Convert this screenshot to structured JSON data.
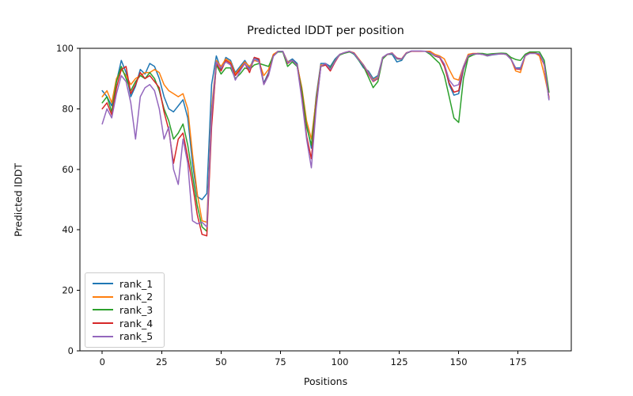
{
  "chart_data": {
    "type": "line",
    "title": "Predicted lDDT per position",
    "xlabel": "Positions",
    "ylabel": "Predicted lDDT",
    "grid": false,
    "legend_position": "lower left",
    "xlim": [
      -9.4,
      197.4
    ],
    "ylim": [
      0,
      100
    ],
    "x_ticks": [
      0,
      25,
      50,
      75,
      100,
      125,
      150,
      175
    ],
    "y_ticks": [
      0,
      20,
      40,
      60,
      80,
      100
    ],
    "x": [
      0,
      2,
      4,
      6,
      8,
      10,
      12,
      14,
      16,
      18,
      20,
      22,
      24,
      26,
      28,
      30,
      32,
      34,
      36,
      38,
      40,
      42,
      44,
      46,
      48,
      50,
      52,
      54,
      56,
      58,
      60,
      62,
      64,
      66,
      68,
      70,
      72,
      74,
      76,
      78,
      80,
      82,
      84,
      86,
      88,
      90,
      92,
      94,
      96,
      98,
      100,
      102,
      104,
      106,
      108,
      110,
      112,
      114,
      116,
      118,
      120,
      122,
      124,
      126,
      128,
      130,
      132,
      134,
      136,
      138,
      140,
      142,
      144,
      146,
      148,
      150,
      152,
      154,
      156,
      158,
      160,
      162,
      164,
      166,
      168,
      170,
      172,
      174,
      176,
      178,
      180,
      182,
      184,
      186,
      188
    ],
    "series": [
      {
        "name": "rank_1",
        "color": "#1f77b4",
        "values": [
          86,
          84,
          81,
          89,
          96,
          92,
          84,
          87.5,
          93,
          91.5,
          95,
          94,
          90,
          84,
          80,
          79,
          81,
          83,
          77,
          62,
          51,
          50,
          52,
          88,
          97.5,
          93,
          97,
          96,
          92,
          94,
          96,
          93.5,
          97,
          96,
          88.5,
          92,
          97.5,
          99,
          99,
          95.5,
          96.5,
          95,
          86,
          75,
          67,
          84,
          95,
          95,
          94,
          96.5,
          98,
          98.5,
          99,
          98,
          96,
          93.5,
          92.5,
          90,
          91,
          97,
          98,
          98,
          95.5,
          96,
          98.5,
          99,
          99,
          99,
          99,
          98.5,
          97.5,
          97,
          94.5,
          88,
          84.5,
          85,
          93,
          97.5,
          98,
          98.2,
          98,
          97.5,
          97.8,
          98,
          98.2,
          98,
          96.5,
          93.5,
          93.5,
          97.5,
          98.5,
          98.5,
          98,
          95,
          83
        ]
      },
      {
        "name": "rank_2",
        "color": "#ff7f0e",
        "values": [
          84,
          86,
          82,
          90,
          93,
          91,
          88,
          90,
          91,
          92,
          92,
          93,
          92,
          88,
          86,
          85,
          84,
          85,
          80,
          65,
          52,
          43,
          42.5,
          80,
          96,
          94,
          96.5,
          95.5,
          91.5,
          93.5,
          95.5,
          94,
          96,
          95.5,
          91,
          93,
          98,
          99,
          99,
          95.5,
          96,
          94.5,
          87,
          76,
          70,
          83,
          94.5,
          94.5,
          93.5,
          96,
          98,
          98.5,
          99,
          98.5,
          96.5,
          94.5,
          92,
          89.5,
          90.5,
          97,
          98,
          98.5,
          96.5,
          96.5,
          98.5,
          99,
          99,
          99,
          99,
          99,
          98,
          97.5,
          96.5,
          93,
          90,
          89.5,
          94,
          98,
          98.3,
          98.3,
          98.2,
          97.8,
          98,
          98.2,
          98.3,
          98,
          96.5,
          92.5,
          92,
          97.5,
          98.5,
          98.5,
          97.5,
          91.5,
          84
        ]
      },
      {
        "name": "rank_3",
        "color": "#2ca02c",
        "values": [
          82,
          84,
          79,
          89,
          94,
          90,
          86,
          89,
          91,
          90,
          92,
          90,
          86,
          80,
          76,
          70,
          72,
          75,
          68,
          58,
          48,
          41,
          39.5,
          76,
          94.5,
          91.5,
          93.5,
          93.5,
          90,
          91.5,
          93.5,
          93,
          94.5,
          95,
          94.5,
          94,
          97.5,
          98.8,
          98.8,
          94,
          95.5,
          94,
          86,
          74,
          68,
          82,
          94,
          94.5,
          93.5,
          96,
          97.8,
          98.4,
          98.8,
          98.2,
          96,
          94,
          90.5,
          87,
          89,
          96.5,
          98,
          98.3,
          96.5,
          96.3,
          98.3,
          99,
          99,
          99,
          99,
          98,
          96.5,
          95,
          91,
          84,
          77,
          75.5,
          90,
          97,
          97.8,
          98.3,
          98.3,
          98,
          98.2,
          98.3,
          98.4,
          98.3,
          97,
          96.3,
          96,
          98,
          98.8,
          98.8,
          98.8,
          96,
          85.5
        ]
      },
      {
        "name": "rank_4",
        "color": "#d62728",
        "values": [
          80,
          82,
          78,
          87,
          93,
          94,
          85,
          88,
          92,
          90,
          91,
          89,
          87,
          79,
          73,
          62,
          70,
          72,
          64,
          55,
          45,
          38.5,
          38,
          74,
          95,
          92.5,
          96,
          95,
          91,
          93,
          95,
          92,
          97,
          96.5,
          88,
          91.5,
          97.5,
          99,
          99,
          95,
          96,
          94.5,
          84,
          71,
          63.5,
          81,
          94,
          94.5,
          92.5,
          95.5,
          98,
          98.6,
          99,
          98.4,
          96.3,
          94.3,
          91.5,
          89,
          90,
          97,
          98,
          98.4,
          96.8,
          96.5,
          98.5,
          99,
          99,
          99,
          99,
          98.6,
          97.5,
          97,
          94,
          88.5,
          85.5,
          86,
          93.5,
          97.5,
          98.2,
          98.2,
          98,
          97.6,
          97.9,
          98.1,
          98.2,
          98,
          96.5,
          93.2,
          93,
          97.6,
          98.4,
          98.4,
          98,
          94.5,
          83.5
        ]
      },
      {
        "name": "rank_5",
        "color": "#9467bd",
        "values": [
          75,
          80,
          77,
          85,
          91,
          89,
          82,
          70,
          84,
          87,
          88,
          86,
          80,
          70,
          74,
          60,
          55,
          70,
          62,
          43,
          42,
          42.5,
          41,
          78,
          95.5,
          93.5,
          95.5,
          94.5,
          89.5,
          92.5,
          95,
          93,
          96.5,
          95.5,
          88,
          91,
          97.3,
          99,
          99,
          95.2,
          96,
          94.3,
          83,
          70,
          60.5,
          80,
          94,
          95,
          93,
          95.8,
          98,
          98.6,
          99,
          98.3,
          96.2,
          94.4,
          91.8,
          89.2,
          90.2,
          97,
          98.1,
          98.4,
          96.6,
          96.4,
          98.4,
          99.1,
          99.1,
          99.1,
          99,
          98.5,
          97.6,
          97.2,
          94.8,
          89.5,
          87.5,
          88,
          94,
          97.6,
          98.1,
          98.2,
          98,
          97.7,
          97.9,
          98.1,
          98.2,
          98,
          96.4,
          93.4,
          93.2,
          97.6,
          98.3,
          98.3,
          98.2,
          94.8,
          83
        ]
      }
    ]
  }
}
